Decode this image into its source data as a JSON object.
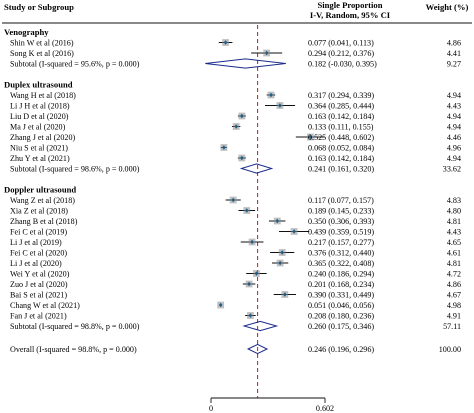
{
  "header": {
    "study_label": "Study or Subgroup",
    "proportion_label_line1": "Single Proportion",
    "proportion_label_line2": "I-V, Random, 95% CI",
    "weight_label": "Weight (%)"
  },
  "chart_data": {
    "type": "forest",
    "x_axis": {
      "min": 0,
      "max": 0.602,
      "ticks": [
        "0",
        "0.602"
      ],
      "reference_line": 0.246
    },
    "groups": [
      {
        "name": "Venography",
        "studies": [
          {
            "label": "Shin W et al (2016)",
            "est": 0.077,
            "lo": 0.041,
            "hi": 0.113,
            "ci": "0.077 (0.041, 0.113)",
            "weight": "4.86"
          },
          {
            "label": "Song K et al (2016)",
            "est": 0.294,
            "lo": 0.212,
            "hi": 0.376,
            "ci": "0.294 (0.212, 0.376)",
            "weight": "4.41"
          }
        ],
        "subtotal": {
          "label": "Subtotal  (I-squared = 95.6%, p = 0.000)",
          "est": 0.182,
          "lo": -0.03,
          "hi": 0.395,
          "ci": "0.182 (-0.030, 0.395)",
          "weight": "9.27"
        }
      },
      {
        "name": "Duplex ultrasound",
        "studies": [
          {
            "label": "Wang H et al (2018)",
            "est": 0.317,
            "lo": 0.294,
            "hi": 0.339,
            "ci": "0.317 (0.294, 0.339)",
            "weight": "4.94"
          },
          {
            "label": "Li J H et al (2018)",
            "est": 0.364,
            "lo": 0.285,
            "hi": 0.444,
            "ci": "0.364 (0.285, 0.444)",
            "weight": "4.43"
          },
          {
            "label": "Liu D et al (2020)",
            "est": 0.163,
            "lo": 0.142,
            "hi": 0.184,
            "ci": "0.163 (0.142, 0.184)",
            "weight": "4.94"
          },
          {
            "label": "Ma J et al (2020)",
            "est": 0.133,
            "lo": 0.111,
            "hi": 0.155,
            "ci": "0.133 (0.111, 0.155)",
            "weight": "4.94"
          },
          {
            "label": "Zhang J et al (2020)",
            "est": 0.525,
            "lo": 0.448,
            "hi": 0.602,
            "ci": "0.525 (0.448, 0.602)",
            "weight": "4.46"
          },
          {
            "label": "Niu S et al (2021)",
            "est": 0.068,
            "lo": 0.052,
            "hi": 0.084,
            "ci": "0.068 (0.052, 0.084)",
            "weight": "4.96"
          },
          {
            "label": "Zhu Y et al (2021)",
            "est": 0.163,
            "lo": 0.142,
            "hi": 0.184,
            "ci": "0.163 (0.142, 0.184)",
            "weight": "4.94"
          }
        ],
        "subtotal": {
          "label": "Subtotal  (I-squared = 98.6%, p = 0.000)",
          "est": 0.241,
          "lo": 0.161,
          "hi": 0.32,
          "ci": "0.241 (0.161, 0.320)",
          "weight": "33.62"
        }
      },
      {
        "name": "Doppler ultrasound",
        "studies": [
          {
            "label": "Wang Z et al (2018)",
            "est": 0.117,
            "lo": 0.077,
            "hi": 0.157,
            "ci": "0.117 (0.077, 0.157)",
            "weight": "4.83"
          },
          {
            "label": "Xia Z et al (2018)",
            "est": 0.189,
            "lo": 0.145,
            "hi": 0.233,
            "ci": "0.189 (0.145, 0.233)",
            "weight": "4.80"
          },
          {
            "label": "Zhang B et al (2018)",
            "est": 0.35,
            "lo": 0.306,
            "hi": 0.393,
            "ci": "0.350 (0.306, 0.393)",
            "weight": "4.81"
          },
          {
            "label": "Fei C et al (2019)",
            "est": 0.439,
            "lo": 0.359,
            "hi": 0.519,
            "ci": "0.439 (0.359, 0.519)",
            "weight": "4.43"
          },
          {
            "label": "Li J et al (2019)",
            "est": 0.217,
            "lo": 0.157,
            "hi": 0.277,
            "ci": "0.217 (0.157, 0.277)",
            "weight": "4.65"
          },
          {
            "label": "Fei C et al (2020)",
            "est": 0.376,
            "lo": 0.312,
            "hi": 0.44,
            "ci": "0.376 (0.312, 0.440)",
            "weight": "4.61"
          },
          {
            "label": "Li J et al (2020)",
            "est": 0.365,
            "lo": 0.322,
            "hi": 0.408,
            "ci": "0.365 (0.322, 0.408)",
            "weight": "4.81"
          },
          {
            "label": "Wei Y et al (2020)",
            "est": 0.24,
            "lo": 0.186,
            "hi": 0.294,
            "ci": "0.240 (0.186, 0.294)",
            "weight": "4.72"
          },
          {
            "label": "Zuo J et al (2020)",
            "est": 0.201,
            "lo": 0.168,
            "hi": 0.234,
            "ci": "0.201 (0.168, 0.234)",
            "weight": "4.86"
          },
          {
            "label": "Bai S et al (2021)",
            "est": 0.39,
            "lo": 0.331,
            "hi": 0.449,
            "ci": "0.390 (0.331, 0.449)",
            "weight": "4.67"
          },
          {
            "label": "Chang W et al (2021)",
            "est": 0.051,
            "lo": 0.046,
            "hi": 0.056,
            "ci": "0.051 (0.046, 0.056)",
            "weight": "4.98"
          },
          {
            "label": "Fan J et al (2021)",
            "est": 0.208,
            "lo": 0.18,
            "hi": 0.236,
            "ci": "0.208 (0.180, 0.236)",
            "weight": "4.91"
          }
        ],
        "subtotal": {
          "label": "Subtotal  (I-squared = 98.8%, p = 0.000)",
          "est": 0.26,
          "lo": 0.175,
          "hi": 0.346,
          "ci": "0.260 (0.175, 0.346)",
          "weight": "57.11"
        }
      }
    ],
    "overall": {
      "label": "Overall  (I-squared = 98.8%, p = 0.000)",
      "est": 0.246,
      "lo": 0.196,
      "hi": 0.296,
      "ci": "0.246 (0.196, 0.296)",
      "weight": "100.00"
    },
    "colors": {
      "ref_line": "#d62728",
      "marker": "#1f5f8b",
      "square": "#8d8d8d",
      "ink": "#111111"
    }
  }
}
